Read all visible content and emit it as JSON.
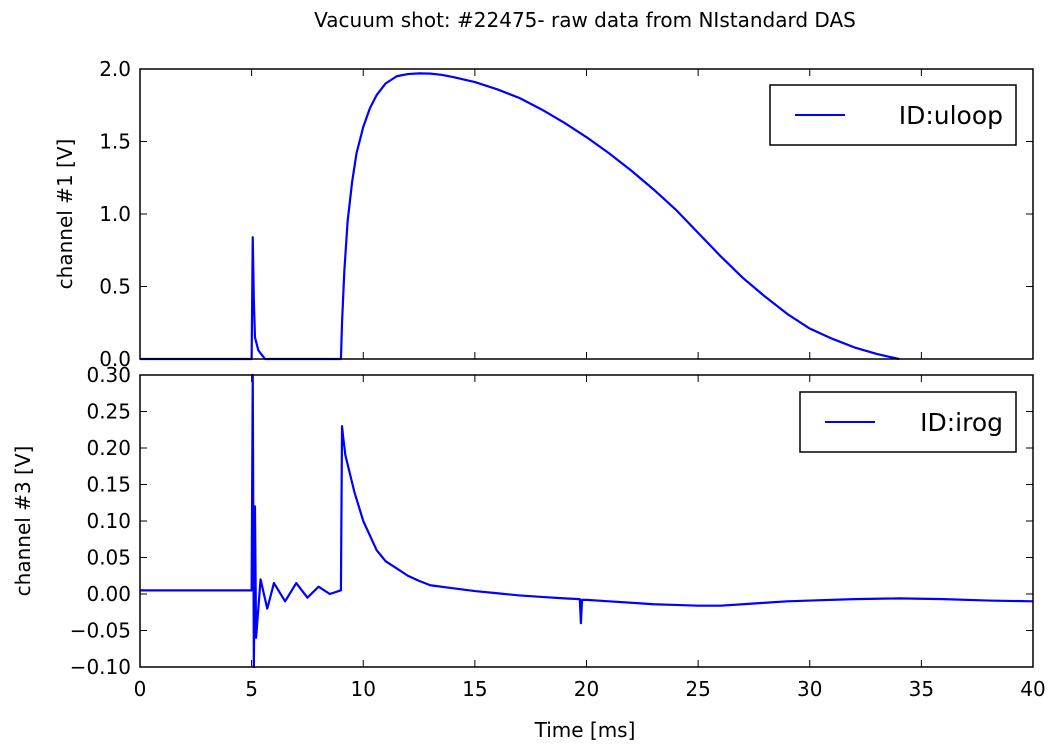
{
  "figure": {
    "title": "Vacuum shot: #22475- raw data from NIstandard DAS",
    "xlabel": "Time [ms]"
  },
  "chart_data": [
    {
      "type": "line",
      "id": "top",
      "ylabel": "channel #1 [V]",
      "xlim": [
        0,
        40
      ],
      "ylim": [
        0,
        2.0
      ],
      "yticks": [
        0.0,
        0.5,
        1.0,
        1.5,
        2.0
      ],
      "ytick_labels": [
        "0.0",
        "0.5",
        "1.0",
        "1.5",
        "2.0"
      ],
      "grid": false,
      "legend_position": "top-right",
      "color": "#0000ff",
      "series": [
        {
          "name": "ID:uloop",
          "x": [
            0,
            5.0,
            5.05,
            5.1,
            5.15,
            5.3,
            5.6,
            9.0,
            9.05,
            9.15,
            9.3,
            9.5,
            9.7,
            10.0,
            10.3,
            10.6,
            11.0,
            11.5,
            12.0,
            12.5,
            13.0,
            13.5,
            14.0,
            15.0,
            16.0,
            17.0,
            18.0,
            19.0,
            20.0,
            21.0,
            22.0,
            23.0,
            24.0,
            25.0,
            26.0,
            27.0,
            28.0,
            29.0,
            30.0,
            31.0,
            32.0,
            33.0,
            34.0
          ],
          "y": [
            0,
            0,
            0.84,
            0.4,
            0.15,
            0.06,
            0.0,
            0.0,
            0.25,
            0.6,
            0.95,
            1.22,
            1.42,
            1.6,
            1.73,
            1.82,
            1.9,
            1.95,
            1.965,
            1.97,
            1.968,
            1.96,
            1.945,
            1.91,
            1.86,
            1.8,
            1.72,
            1.63,
            1.53,
            1.42,
            1.3,
            1.17,
            1.03,
            0.87,
            0.71,
            0.56,
            0.43,
            0.31,
            0.21,
            0.14,
            0.08,
            0.035,
            0.0
          ]
        }
      ]
    },
    {
      "type": "line",
      "id": "bottom",
      "ylabel": "channel #3 [V]",
      "xlim": [
        0,
        40
      ],
      "ylim": [
        -0.1,
        0.3
      ],
      "yticks": [
        -0.1,
        -0.05,
        0.0,
        0.05,
        0.1,
        0.15,
        0.2,
        0.25,
        0.3
      ],
      "ytick_labels": [
        "−0.10",
        "−0.05",
        "0.00",
        "0.05",
        "0.10",
        "0.15",
        "0.20",
        "0.25",
        "0.30"
      ],
      "xticks": [
        0,
        5,
        10,
        15,
        20,
        25,
        30,
        35,
        40
      ],
      "xtick_labels": [
        "0",
        "5",
        "10",
        "15",
        "20",
        "25",
        "30",
        "35",
        "40"
      ],
      "grid": false,
      "legend_position": "top-right",
      "color": "#0000ff",
      "series": [
        {
          "name": "ID:irog",
          "x": [
            0,
            4.0,
            5.0,
            5.05,
            5.1,
            5.15,
            5.2,
            5.4,
            5.7,
            6.0,
            6.5,
            7.0,
            7.5,
            8.0,
            8.5,
            9.0,
            9.05,
            9.1,
            9.2,
            9.4,
            9.6,
            9.8,
            10.0,
            10.3,
            10.6,
            11.0,
            11.5,
            12.0,
            12.5,
            13.0,
            14.0,
            15.0,
            16.0,
            17.0,
            18.0,
            19.0,
            19.7,
            19.75,
            19.8,
            20.0,
            21.0,
            22.0,
            23.0,
            24.0,
            25.0,
            26.0,
            27.0,
            28.0,
            29.0,
            30.0,
            32.0,
            34.0,
            36.0,
            38.0,
            40.0
          ],
          "y": [
            0.005,
            0.005,
            0.005,
            0.3,
            -0.1,
            0.12,
            -0.06,
            0.02,
            -0.02,
            0.015,
            -0.01,
            0.015,
            -0.005,
            0.01,
            0.0,
            0.005,
            0.23,
            0.215,
            0.19,
            0.165,
            0.14,
            0.12,
            0.1,
            0.08,
            0.06,
            0.045,
            0.035,
            0.025,
            0.018,
            0.012,
            0.008,
            0.004,
            0.001,
            -0.002,
            -0.004,
            -0.006,
            -0.007,
            -0.04,
            -0.008,
            -0.008,
            -0.01,
            -0.012,
            -0.014,
            -0.015,
            -0.016,
            -0.016,
            -0.014,
            -0.012,
            -0.01,
            -0.009,
            -0.007,
            -0.006,
            -0.007,
            -0.009,
            -0.01
          ]
        }
      ]
    }
  ]
}
